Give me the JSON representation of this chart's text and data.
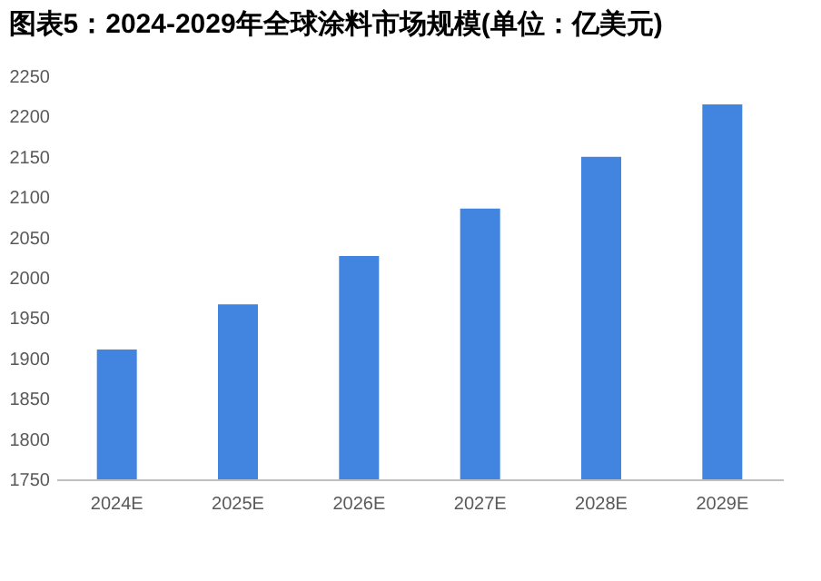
{
  "chart_data": {
    "type": "bar",
    "title": "图表5：2024-2029年全球涂料市场规模(单位：亿美元)",
    "categories": [
      "2024E",
      "2025E",
      "2026E",
      "2027E",
      "2028E",
      "2029E"
    ],
    "values": [
      1911,
      1967,
      2027,
      2086,
      2150,
      2215
    ],
    "color": "#4185e0",
    "ylim": [
      1750,
      2250
    ],
    "yticks": [
      1750,
      1800,
      1850,
      1900,
      1950,
      2000,
      2050,
      2100,
      2150,
      2200,
      2250
    ],
    "grid": false
  }
}
